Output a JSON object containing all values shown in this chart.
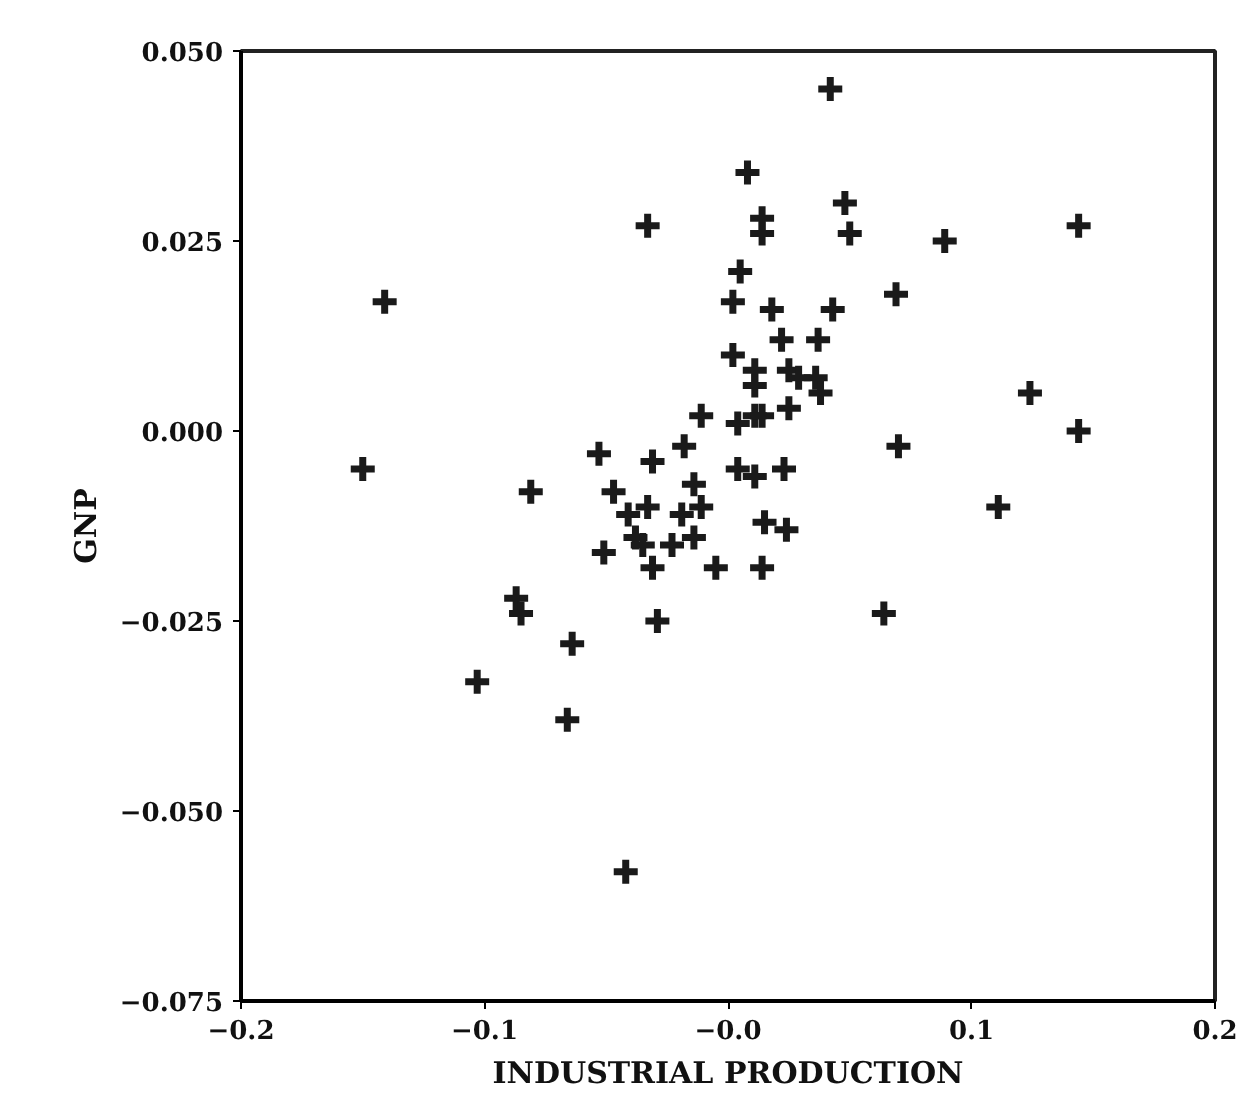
{
  "chart_data": {
    "type": "scatter",
    "xlabel": "INDUSTRIAL PRODUCTION",
    "ylabel": "GNP",
    "marker": "cross",
    "grid": false,
    "xlim": [
      -0.2,
      0.2
    ],
    "ylim": [
      -0.075,
      0.05
    ],
    "xticks": [
      {
        "value": -0.2,
        "label": "−0.2"
      },
      {
        "value": -0.1,
        "label": "−0.1"
      },
      {
        "value": 0,
        "label": "−0.0"
      },
      0.1,
      0.2
    ],
    "yticks": [
      {
        "value": -0.075,
        "label": "−0.075"
      },
      {
        "value": -0.05,
        "label": "−0.050"
      },
      {
        "value": -0.025,
        "label": "−0.025"
      },
      {
        "value": 0,
        "label": "0.000"
      },
      {
        "value": 0.025,
        "label": "0.025"
      },
      {
        "value": 0.05,
        "label": "0.050"
      }
    ],
    "series": [
      {
        "color": "#1a1a1a",
        "x": [
          -0.141,
          -0.15,
          -0.033,
          -0.081,
          -0.053,
          -0.047,
          -0.031,
          -0.018,
          -0.011,
          -0.014,
          0.042,
          0.008,
          0.048,
          0.014,
          0.014,
          0.05,
          0.089,
          0.144,
          0.005,
          0.002,
          0.018,
          0.043,
          0.069,
          0.022,
          0.037,
          0.002,
          0.011,
          0.011,
          0.025,
          0.029,
          0.036,
          0.038,
          0.124,
          0.004,
          0.011,
          0.014,
          0.025,
          0.144,
          0.07,
          0.004,
          0.011,
          0.023,
          0.111,
          0.015,
          0.024,
          -0.005,
          0.014,
          0.064,
          -0.041,
          -0.033,
          -0.019,
          -0.011,
          -0.038,
          -0.035,
          -0.051,
          -0.023,
          -0.014,
          -0.031,
          -0.087,
          -0.085,
          -0.029,
          -0.064,
          -0.103,
          -0.066,
          -0.042
        ],
        "values": [
          0.017,
          -0.005,
          0.027,
          -0.008,
          -0.003,
          -0.008,
          -0.004,
          -0.002,
          0.002,
          -0.007,
          0.045,
          0.034,
          0.03,
          0.028,
          0.026,
          0.026,
          0.025,
          0.027,
          0.021,
          0.017,
          0.016,
          0.016,
          0.018,
          0.012,
          0.012,
          0.01,
          0.008,
          0.006,
          0.008,
          0.007,
          0.007,
          0.005,
          0.005,
          0.001,
          0.002,
          0.002,
          0.003,
          0.0,
          -0.002,
          -0.005,
          -0.006,
          -0.005,
          -0.01,
          -0.012,
          -0.013,
          -0.018,
          -0.018,
          -0.024,
          -0.011,
          -0.01,
          -0.011,
          -0.01,
          -0.014,
          -0.015,
          -0.016,
          -0.015,
          -0.014,
          -0.018,
          -0.022,
          -0.024,
          -0.025,
          -0.028,
          -0.033,
          -0.038,
          -0.058
        ]
      }
    ]
  }
}
